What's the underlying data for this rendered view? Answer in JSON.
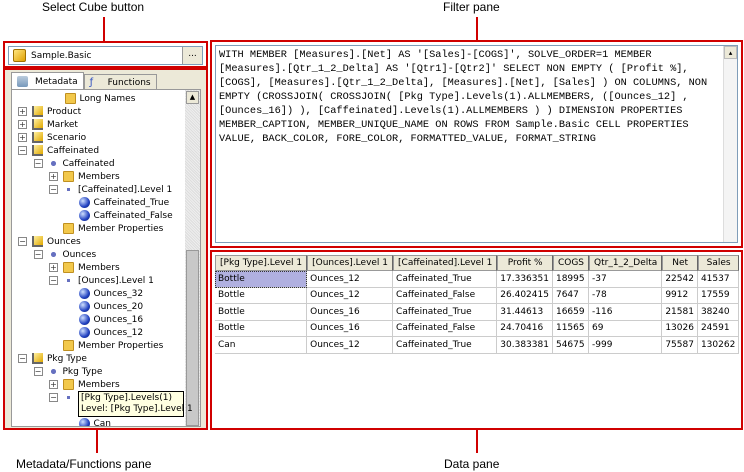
{
  "callouts": {
    "select_cube": "Select Cube button",
    "filter_pane": "Filter pane",
    "metadata_pane": "Metadata/Functions pane",
    "data_pane": "Data pane"
  },
  "cube": {
    "name": "Sample.Basic",
    "browse_label": "..."
  },
  "tabs": [
    {
      "label": "Metadata",
      "active": true
    },
    {
      "label": "Functions",
      "active": false
    }
  ],
  "tree": [
    {
      "label": "Long Names",
      "type": "names",
      "indent": 3
    },
    {
      "label": "Product",
      "type": "dim",
      "indent": 0,
      "toggle": "+"
    },
    {
      "label": "Market",
      "type": "dim",
      "indent": 0,
      "toggle": "+"
    },
    {
      "label": "Scenario",
      "type": "dim",
      "indent": 0,
      "toggle": "+"
    },
    {
      "label": "Caffeinated",
      "type": "dim",
      "indent": 0,
      "toggle": "-"
    },
    {
      "label": "Caffeinated",
      "type": "hier",
      "indent": 1,
      "toggle": "-"
    },
    {
      "label": "Members",
      "type": "fold",
      "indent": 2,
      "toggle": "+"
    },
    {
      "label": "[Caffeinated].Level 1",
      "type": "level",
      "indent": 2,
      "toggle": "-"
    },
    {
      "label": "Caffeinated_True",
      "type": "ball",
      "indent": 3
    },
    {
      "label": "Caffeinated_False",
      "type": "ball",
      "indent": 3
    },
    {
      "label": "Member Properties",
      "type": "fold",
      "indent": 2
    },
    {
      "label": "Ounces",
      "type": "dim",
      "indent": 0,
      "toggle": "-"
    },
    {
      "label": "Ounces",
      "type": "hier",
      "indent": 1,
      "toggle": "-"
    },
    {
      "label": "Members",
      "type": "fold",
      "indent": 2,
      "toggle": "+"
    },
    {
      "label": "[Ounces].Level 1",
      "type": "level",
      "indent": 2,
      "toggle": "-"
    },
    {
      "label": "Ounces_32",
      "type": "ball",
      "indent": 3
    },
    {
      "label": "Ounces_20",
      "type": "ball",
      "indent": 3
    },
    {
      "label": "Ounces_16",
      "type": "ball",
      "indent": 3
    },
    {
      "label": "Ounces_12",
      "type": "ball",
      "indent": 3
    },
    {
      "label": "Member Properties",
      "type": "fold",
      "indent": 2
    },
    {
      "label": "Pkg Type",
      "type": "dim",
      "indent": 0,
      "toggle": "-"
    },
    {
      "label": "Pkg Type",
      "type": "hier",
      "indent": 1,
      "toggle": "-"
    },
    {
      "label": "Members",
      "type": "fold",
      "indent": 2,
      "toggle": "+"
    },
    {
      "label": "",
      "type": "level",
      "indent": 2,
      "toggle": "-"
    },
    {
      "label": "",
      "type": "ball",
      "indent": 3
    },
    {
      "label": "Can",
      "type": "ball",
      "indent": 3
    }
  ],
  "tooltip": {
    "line1": "[Pkg Type].Levels(1)",
    "line2": "Level: [Pkg Type].Level 1"
  },
  "query": "WITH MEMBER [Measures].[Net] AS '[Sales]-[COGS]', SOLVE_ORDER=1 MEMBER [Measures].[Qtr_1_2_Delta] AS '[Qtr1]-[Qtr2]' SELECT NON EMPTY ( [Profit %], [COGS], [Measures].[Qtr_1_2_Delta], [Measures].[Net], [Sales] ) ON COLUMNS, NON EMPTY (CROSSJOIN( CROSSJOIN( [Pkg Type].Levels(1).ALLMEMBERS, ([Ounces_12] , [Ounces_16]) ), [Caffeinated].Levels(1).ALLMEMBERS ) ) DIMENSION PROPERTIES MEMBER_CAPTION, MEMBER_UNIQUE_NAME ON ROWS FROM Sample.Basic CELL PROPERTIES VALUE, BACK_COLOR, FORE_COLOR, FORMATTED_VALUE, FORMAT_STRING",
  "grid": {
    "columns": [
      "[Pkg Type].Level 1",
      "[Ounces].Level 1",
      "[Caffeinated].Level 1",
      "Profit %",
      "COGS",
      "Qtr_1_2_Delta",
      "Net",
      "Sales"
    ],
    "rows": [
      [
        "Bottle",
        "Ounces_12",
        "Caffeinated_True",
        "17.336351",
        "18995",
        "-37",
        "22542",
        "41537"
      ],
      [
        "Bottle",
        "Ounces_12",
        "Caffeinated_False",
        "26.402415",
        "7647",
        "-78",
        "9912",
        "17559"
      ],
      [
        "Bottle",
        "Ounces_16",
        "Caffeinated_True",
        "31.44613",
        "16659",
        "-116",
        "21581",
        "38240"
      ],
      [
        "Bottle",
        "Ounces_16",
        "Caffeinated_False",
        "24.70416",
        "11565",
        "69",
        "13026",
        "24591"
      ],
      [
        "Can",
        "Ounces_12",
        "Caffeinated_True",
        "30.383381",
        "54675",
        "-999",
        "75587",
        "130262"
      ]
    ]
  },
  "colors": {
    "callout_red": "#d00000",
    "selected_cell": "#b0b0e0"
  }
}
